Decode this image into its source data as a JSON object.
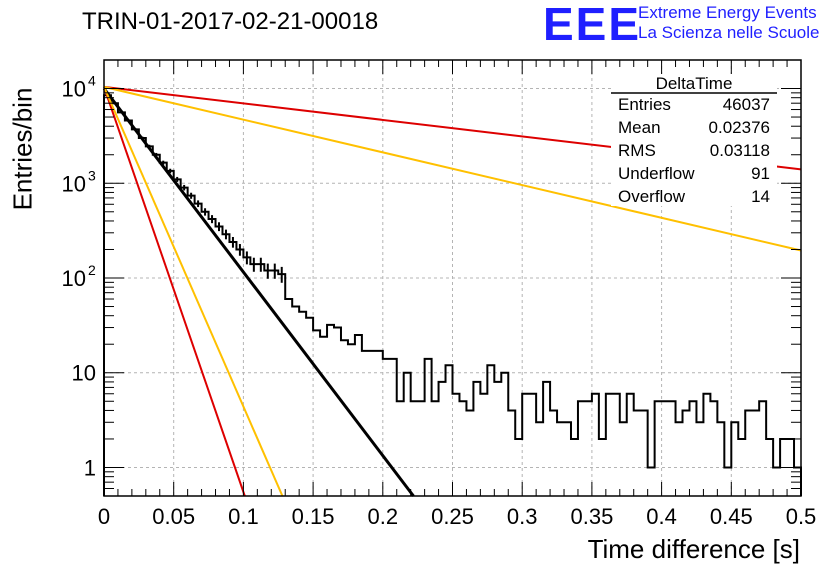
{
  "header": {
    "title": "TRIN-01-2017-02-21-00018",
    "logo_text": "EEE",
    "logo_line1": "Extreme Energy Events",
    "logo_line2": "La Scienza nelle Scuole"
  },
  "stats_box": {
    "name": "DeltaTime",
    "rows": [
      {
        "label": "Entries",
        "value": "46037"
      },
      {
        "label": "Mean",
        "value": "0.02376"
      },
      {
        "label": "RMS",
        "value": "0.03118"
      },
      {
        "label": "Underflow",
        "value": "91"
      },
      {
        "label": "Overflow",
        "value": "14"
      }
    ]
  },
  "colors": {
    "histogram": "#000000",
    "fit": "#000000",
    "red": "#dd0000",
    "orange": "#ffc000",
    "grid": "#b4b4b4",
    "logo": "#1f1fff"
  },
  "chart_data": {
    "type": "line",
    "xlabel": "Time difference [s]",
    "ylabel": "Entries/bin",
    "xlim": [
      0,
      0.5
    ],
    "ylim": [
      0.5,
      20000
    ],
    "yscale": "log",
    "grid": true,
    "x_ticks": [
      "0",
      "0.05",
      "0.1",
      "0.15",
      "0.2",
      "0.25",
      "0.3",
      "0.35",
      "0.4",
      "0.45",
      "0.5"
    ],
    "y_ticks": [
      {
        "value": 1,
        "label": "1"
      },
      {
        "value": 10,
        "label": "10"
      },
      {
        "value": 100,
        "label": "10",
        "exp": "2"
      },
      {
        "value": 1000,
        "label": "10",
        "exp": "3"
      },
      {
        "value": 10000,
        "label": "10",
        "exp": "4"
      }
    ],
    "histogram": {
      "bin_width": 0.005,
      "values": [
        8500,
        7000,
        5600,
        4600,
        3700,
        3000,
        2450,
        2000,
        1650,
        1350,
        1100,
        900,
        740,
        610,
        500,
        420,
        350,
        290,
        240,
        200,
        165,
        140,
        140,
        120,
        120,
        110,
        60,
        50,
        44,
        38,
        28,
        24,
        32,
        30,
        22,
        20,
        25,
        17,
        17,
        17,
        14,
        14,
        5,
        10,
        5,
        5,
        14,
        5,
        8,
        12,
        6,
        5,
        4,
        8,
        6,
        12,
        8,
        10,
        4,
        2,
        6,
        6,
        3,
        8,
        4,
        3,
        3,
        2,
        5,
        5,
        6,
        2,
        6,
        6,
        3,
        6,
        4,
        4,
        1,
        5,
        5,
        5,
        3,
        4,
        5,
        3,
        6,
        5,
        3,
        1,
        3,
        2,
        4,
        4,
        5,
        2,
        1,
        2,
        2,
        1
      ]
    },
    "series": [
      {
        "x": [
          0,
          0.222
        ],
        "y": [
          10000,
          0.5
        ]
      },
      {
        "x": [
          0,
          0.5
        ],
        "y": [
          10400,
          1400
        ]
      },
      {
        "x": [
          0,
          0.5
        ],
        "y": [
          10400,
          195
        ]
      },
      {
        "x": [
          0,
          0.101
        ],
        "y": [
          10400,
          0.5
        ]
      },
      {
        "x": [
          0,
          0.128
        ],
        "y": [
          10400,
          0.5
        ]
      }
    ]
  }
}
